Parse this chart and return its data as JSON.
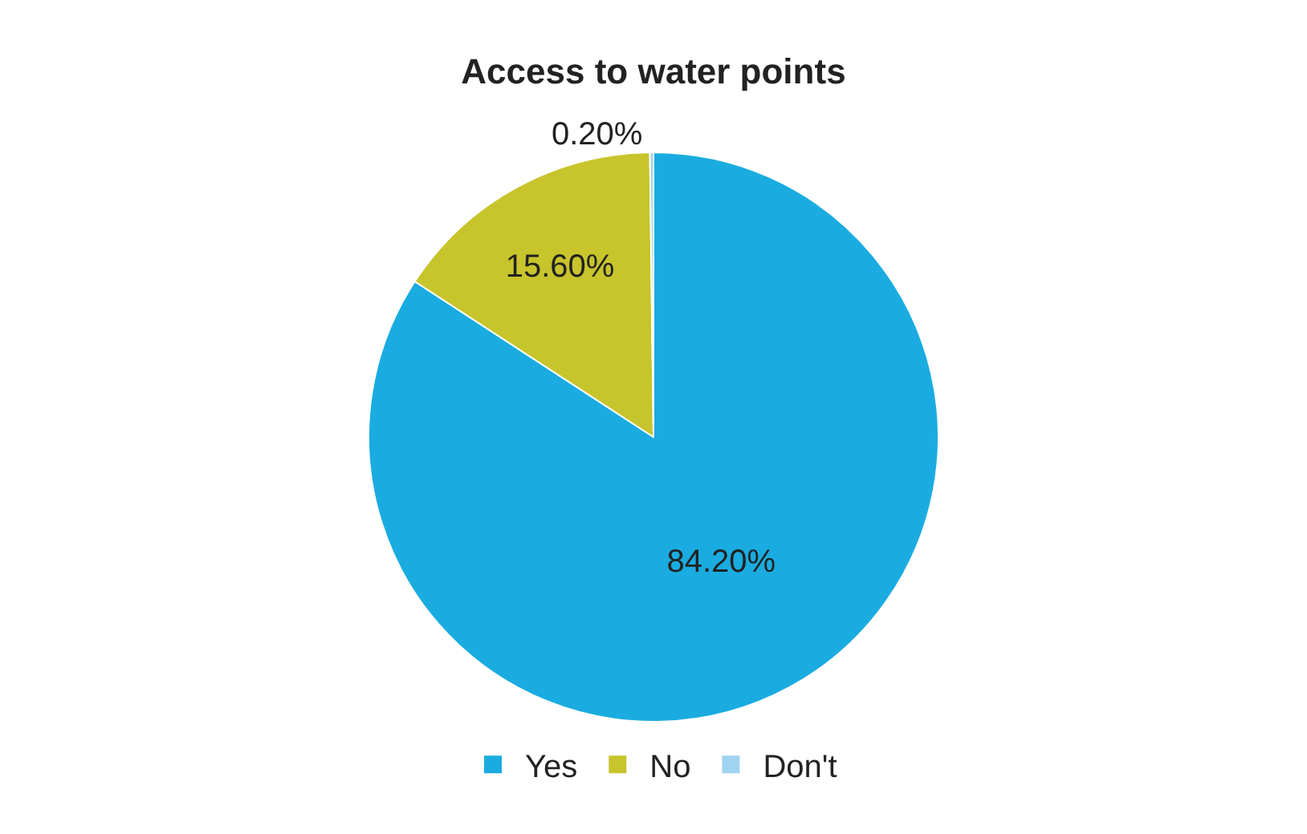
{
  "chart_data": {
    "type": "pie",
    "title": "Access to water points",
    "categories": [
      "Yes",
      "No",
      "Don't"
    ],
    "values": [
      84.2,
      15.6,
      0.2
    ],
    "value_labels": [
      "84.20%",
      "15.60%",
      "0.20%"
    ],
    "colors": [
      "#1aace0",
      "#c8c42c",
      "#9fd3ef"
    ],
    "legend": "bottom"
  }
}
